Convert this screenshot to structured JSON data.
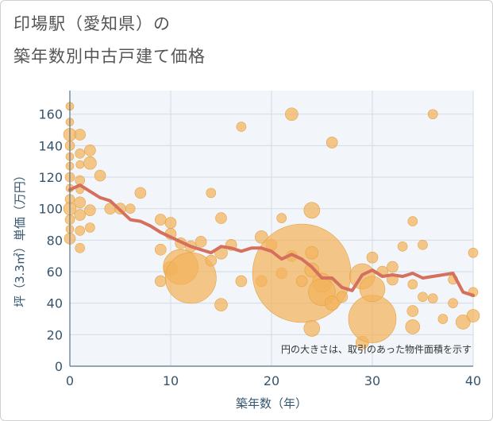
{
  "title_line1": "印場駅（愛知県）の",
  "title_line2": "築年数別中古戸建て価格",
  "chart_data": {
    "type": "scatter",
    "title": "印場駅（愛知県）の築年数別中古戸建て価格",
    "xlabel": "築年数（年）",
    "ylabel": "坪（3.3㎡）単価（万円）",
    "xlim": [
      0,
      40
    ],
    "ylim": [
      0,
      175
    ],
    "xticks": [
      0,
      10,
      20,
      30,
      40
    ],
    "yticks": [
      0,
      20,
      40,
      60,
      80,
      100,
      120,
      140,
      160
    ],
    "grid": true,
    "note": "円の大きさは、取引のあった物件面積を示す",
    "colors": {
      "bubble": "#f2b35c",
      "bubble_stroke": "#e3a246",
      "trend": "#d4705d",
      "plot_bg": "#f2f6fa",
      "grid": "#d2dbe6",
      "axis_text": "#36556e"
    },
    "points": [
      {
        "x": 0,
        "y": 165,
        "s": 5
      },
      {
        "x": 0,
        "y": 155,
        "s": 5
      },
      {
        "x": 0,
        "y": 147,
        "s": 8
      },
      {
        "x": 0,
        "y": 140,
        "s": 6
      },
      {
        "x": 0,
        "y": 133,
        "s": 5
      },
      {
        "x": 0,
        "y": 127,
        "s": 5
      },
      {
        "x": 0,
        "y": 120,
        "s": 6
      },
      {
        "x": 0,
        "y": 113,
        "s": 5
      },
      {
        "x": 0,
        "y": 106,
        "s": 6
      },
      {
        "x": 0,
        "y": 100,
        "s": 8
      },
      {
        "x": 0,
        "y": 93,
        "s": 6
      },
      {
        "x": 0,
        "y": 87,
        "s": 5
      },
      {
        "x": 0,
        "y": 81,
        "s": 7
      },
      {
        "x": 1,
        "y": 147,
        "s": 7
      },
      {
        "x": 1,
        "y": 135,
        "s": 6
      },
      {
        "x": 1,
        "y": 128,
        "s": 5
      },
      {
        "x": 1,
        "y": 118,
        "s": 6
      },
      {
        "x": 1,
        "y": 112,
        "s": 5
      },
      {
        "x": 1,
        "y": 104,
        "s": 7
      },
      {
        "x": 1,
        "y": 96,
        "s": 7
      },
      {
        "x": 1,
        "y": 86,
        "s": 6
      },
      {
        "x": 1,
        "y": 75,
        "s": 6
      },
      {
        "x": 2,
        "y": 137,
        "s": 7
      },
      {
        "x": 2,
        "y": 129,
        "s": 8
      },
      {
        "x": 2,
        "y": 99,
        "s": 7
      },
      {
        "x": 2,
        "y": 88,
        "s": 6
      },
      {
        "x": 3,
        "y": 121,
        "s": 7
      },
      {
        "x": 4,
        "y": 100,
        "s": 7
      },
      {
        "x": 5,
        "y": 100,
        "s": 7
      },
      {
        "x": 6,
        "y": 100,
        "s": 6
      },
      {
        "x": 7,
        "y": 110,
        "s": 7
      },
      {
        "x": 9,
        "y": 93,
        "s": 7
      },
      {
        "x": 9,
        "y": 74,
        "s": 7
      },
      {
        "x": 9,
        "y": 54,
        "s": 7
      },
      {
        "x": 10,
        "y": 91,
        "s": 7
      },
      {
        "x": 10,
        "y": 84,
        "s": 7
      },
      {
        "x": 10,
        "y": 62,
        "s": 9
      },
      {
        "x": 11,
        "y": 78,
        "s": 7
      },
      {
        "x": 11,
        "y": 63,
        "s": 22
      },
      {
        "x": 12,
        "y": 56,
        "s": 32
      },
      {
        "x": 12,
        "y": 76,
        "s": 7
      },
      {
        "x": 13,
        "y": 79,
        "s": 7
      },
      {
        "x": 14,
        "y": 110,
        "s": 6
      },
      {
        "x": 14,
        "y": 67,
        "s": 7
      },
      {
        "x": 15,
        "y": 94,
        "s": 7
      },
      {
        "x": 15,
        "y": 72,
        "s": 8
      },
      {
        "x": 15,
        "y": 39,
        "s": 8
      },
      {
        "x": 16,
        "y": 77,
        "s": 7
      },
      {
        "x": 17,
        "y": 152,
        "s": 6
      },
      {
        "x": 17,
        "y": 54,
        "s": 7
      },
      {
        "x": 19,
        "y": 54,
        "s": 7
      },
      {
        "x": 19,
        "y": 82,
        "s": 8
      },
      {
        "x": 20,
        "y": 77,
        "s": 7
      },
      {
        "x": 21,
        "y": 94,
        "s": 6
      },
      {
        "x": 21,
        "y": 59,
        "s": 7
      },
      {
        "x": 22,
        "y": 160,
        "s": 8
      },
      {
        "x": 22,
        "y": 70,
        "s": 7
      },
      {
        "x": 23,
        "y": 59,
        "s": 62
      },
      {
        "x": 23,
        "y": 54,
        "s": 7
      },
      {
        "x": 24,
        "y": 99,
        "s": 10
      },
      {
        "x": 24,
        "y": 72,
        "s": 8
      },
      {
        "x": 24,
        "y": 61,
        "s": 9
      },
      {
        "x": 24,
        "y": 24,
        "s": 10
      },
      {
        "x": 25,
        "y": 53,
        "s": 12
      },
      {
        "x": 25,
        "y": 47,
        "s": 17
      },
      {
        "x": 26,
        "y": 142,
        "s": 7
      },
      {
        "x": 26,
        "y": 40,
        "s": 9
      },
      {
        "x": 27,
        "y": 44,
        "s": 7
      },
      {
        "x": 29,
        "y": 57,
        "s": 16
      },
      {
        "x": 29,
        "y": 15,
        "s": 8
      },
      {
        "x": 30,
        "y": 69,
        "s": 7
      },
      {
        "x": 30,
        "y": 30,
        "s": 30
      },
      {
        "x": 30,
        "y": 49,
        "s": 16
      },
      {
        "x": 31,
        "y": 60,
        "s": 7
      },
      {
        "x": 32,
        "y": 63,
        "s": 7
      },
      {
        "x": 32,
        "y": 55,
        "s": 7
      },
      {
        "x": 33,
        "y": 76,
        "s": 6
      },
      {
        "x": 34,
        "y": 92,
        "s": 6
      },
      {
        "x": 34,
        "y": 52,
        "s": 6
      },
      {
        "x": 34,
        "y": 35,
        "s": 7
      },
      {
        "x": 34,
        "y": 25,
        "s": 9
      },
      {
        "x": 35,
        "y": 77,
        "s": 6
      },
      {
        "x": 35,
        "y": 44,
        "s": 6
      },
      {
        "x": 36,
        "y": 160,
        "s": 6
      },
      {
        "x": 36,
        "y": 43,
        "s": 6
      },
      {
        "x": 37,
        "y": 30,
        "s": 6
      },
      {
        "x": 38,
        "y": 55,
        "s": 6
      },
      {
        "x": 38,
        "y": 40,
        "s": 6
      },
      {
        "x": 39,
        "y": 28,
        "s": 9
      },
      {
        "x": 40,
        "y": 72,
        "s": 6
      },
      {
        "x": 40,
        "y": 47,
        "s": 6
      },
      {
        "x": 40,
        "y": 32,
        "s": 8
      }
    ],
    "trend": {
      "x": [
        0,
        1,
        2,
        3,
        4,
        5,
        6,
        7,
        8,
        9,
        10,
        11,
        12,
        13,
        14,
        15,
        16,
        17,
        18,
        19,
        20,
        21,
        22,
        23,
        24,
        25,
        26,
        27,
        28,
        29,
        30,
        31,
        32,
        33,
        34,
        35,
        36,
        37,
        38,
        39,
        40
      ],
      "y": [
        112,
        115,
        111,
        107,
        105,
        99,
        93,
        92,
        89,
        85,
        82,
        79,
        76,
        74,
        72,
        76,
        75,
        73,
        75,
        75,
        73,
        68,
        71,
        68,
        63,
        56,
        56,
        50,
        48,
        58,
        61,
        57,
        58,
        57,
        59,
        56,
        57,
        58,
        59,
        47,
        45
      ]
    }
  }
}
